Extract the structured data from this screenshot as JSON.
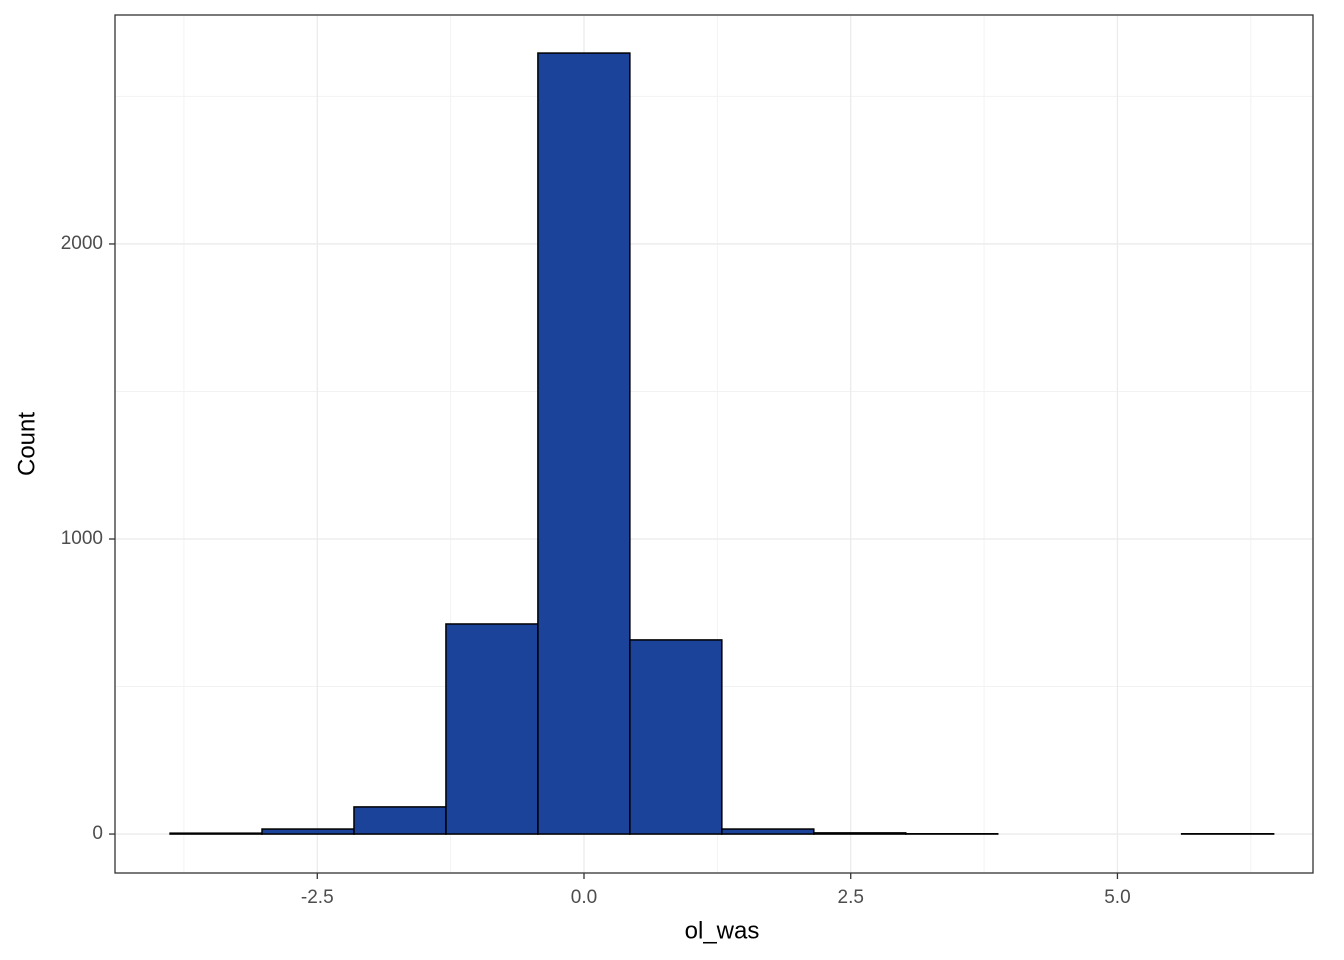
{
  "chart_data": {
    "type": "histogram",
    "x_label": "ol_was",
    "y_label": "Count",
    "bins": [
      -3.88,
      -3.018,
      -2.156,
      -1.294,
      -0.432,
      0.43,
      1.292,
      2.154,
      3.016,
      3.878,
      4.74,
      5.602,
      6.464
    ],
    "counts": [
      3,
      17,
      92,
      712,
      2647,
      658,
      17,
      4,
      1,
      0,
      0,
      1
    ],
    "color": "#1a4399",
    "xlim": [
      -4.396,
      6.833
    ],
    "ylim": [
      -132,
      2776
    ],
    "xticks": [
      {
        "value": -2.5,
        "label": "-2.5"
      },
      {
        "value": 0,
        "label": "0.0"
      },
      {
        "value": 2.5,
        "label": "2.5"
      },
      {
        "value": 5,
        "label": "5.0"
      }
    ],
    "yticks": [
      0,
      1000,
      2000
    ],
    "grid": true
  }
}
